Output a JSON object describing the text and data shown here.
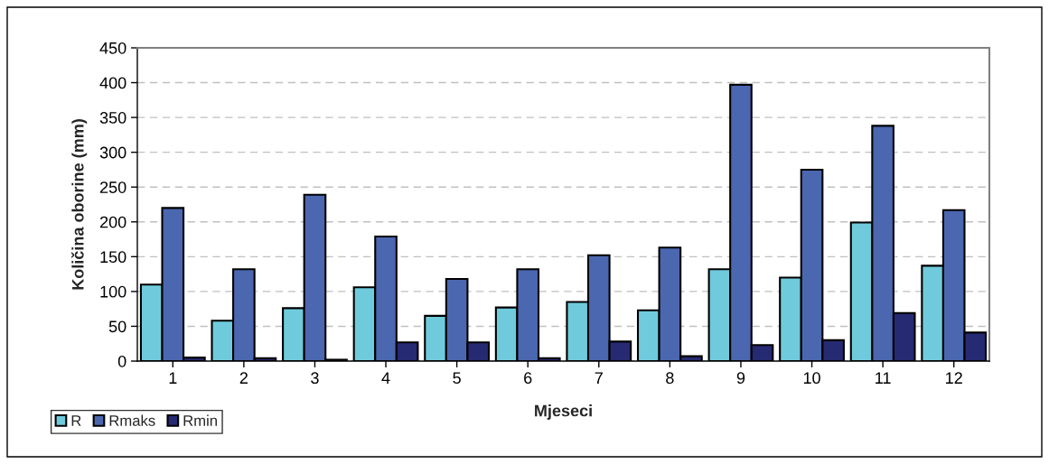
{
  "chart_data": {
    "type": "bar",
    "xlabel": "Mjeseci",
    "ylabel": "Količina oborine (mm)",
    "categories": [
      "1",
      "2",
      "3",
      "4",
      "5",
      "6",
      "7",
      "8",
      "9",
      "10",
      "11",
      "12"
    ],
    "series": [
      {
        "name": "R",
        "color": "#6fcbdc",
        "values": [
          110,
          58,
          76,
          106,
          65,
          77,
          85,
          73,
          132,
          120,
          199,
          137
        ]
      },
      {
        "name": "Rmaks",
        "color": "#4a67b0",
        "values": [
          220,
          132,
          239,
          179,
          118,
          132,
          152,
          163,
          397,
          275,
          338,
          217
        ]
      },
      {
        "name": "Rmin",
        "color": "#262a72",
        "values": [
          5,
          4,
          2,
          27,
          27,
          4,
          28,
          7,
          23,
          30,
          69,
          41
        ]
      }
    ],
    "ylim": [
      0,
      450
    ],
    "yticks": [
      0,
      50,
      100,
      150,
      200,
      250,
      300,
      350,
      400,
      450
    ],
    "grid": "y",
    "legend": "bottom left"
  }
}
